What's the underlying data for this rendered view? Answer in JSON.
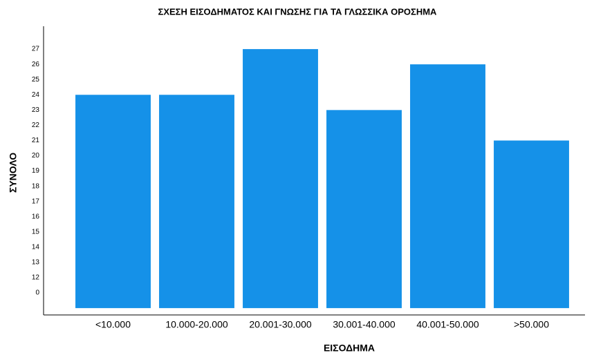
{
  "chart_data": {
    "type": "bar",
    "title": "ΣΧΕΣΗ ΕΙΣΟΔΗΜΑΤΟΣ ΚΑΙ ΓΝΩΣΗΣ ΓΙΑ ΤΑ ΓΛΩΣΣΙΚΑ ΟΡΟΣΗΜΑ",
    "x_label": "ΕΙΣΟΔΗΜΑ",
    "y_label": "ΣΥΝΟΛΟ",
    "categories": [
      "<10.000",
      "10.000-20.000",
      "20.001-30.000",
      "30.001-40.000",
      "40.001-50.000",
      ">50.000"
    ],
    "values": [
      24,
      24,
      27,
      23,
      26,
      21
    ],
    "color": "#1591e8",
    "ylim": [
      0,
      28.5
    ],
    "axis_break": [
      0,
      12
    ],
    "yticks": [
      0,
      12,
      13,
      14,
      15,
      16,
      17,
      18,
      19,
      20,
      21,
      22,
      23,
      24,
      25,
      26,
      27
    ],
    "grid": false
  }
}
